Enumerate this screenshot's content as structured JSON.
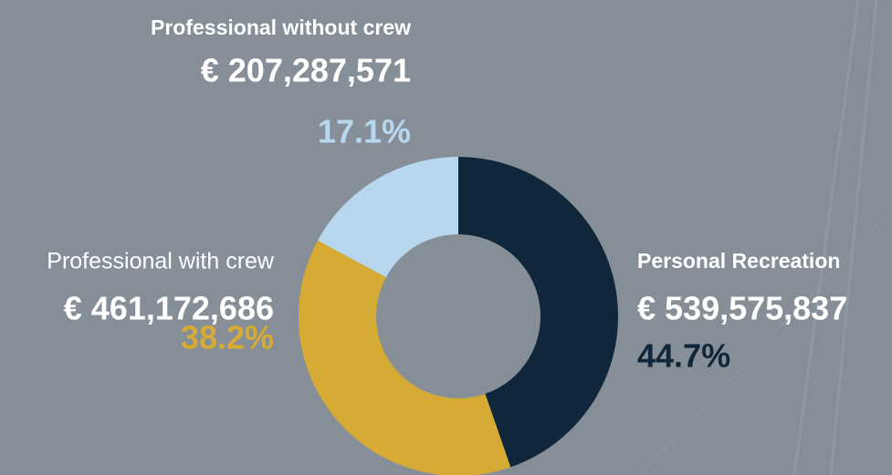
{
  "chart_data": {
    "type": "donut",
    "categories": [
      "Personal Recreation",
      "Professional with crew",
      "Professional without crew"
    ],
    "values": [
      44.7,
      38.2,
      17.1
    ],
    "value_labels": [
      "44.7%",
      "38.2%",
      "17.1%"
    ],
    "amounts": [
      539575837,
      461172686,
      207287571
    ],
    "amount_labels": [
      "€ 539,575,837",
      "€ 461,172,686",
      "€ 207,287,571"
    ],
    "colors": [
      "#10263a",
      "#d6ab35",
      "#b7d7ee"
    ]
  }
}
